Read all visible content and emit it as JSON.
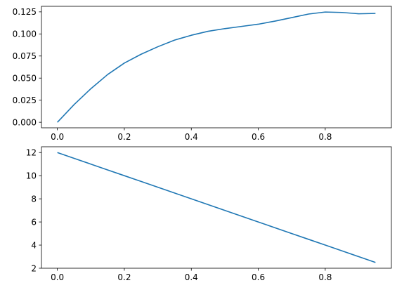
{
  "chart_data": [
    {
      "type": "line",
      "title": "",
      "xlabel": "",
      "ylabel": "",
      "xlim": [
        -0.0475,
        0.9975
      ],
      "ylim": [
        -0.00625,
        0.13125
      ],
      "grid": false,
      "x_ticks": [
        0.0,
        0.2,
        0.4,
        0.6,
        0.8
      ],
      "x_tick_labels": [
        "0.0",
        "0.2",
        "0.4",
        "0.6",
        "0.8"
      ],
      "y_ticks": [
        0.0,
        0.025,
        0.05,
        0.075,
        0.1,
        0.125
      ],
      "y_tick_labels": [
        "0.000",
        "0.025",
        "0.050",
        "0.075",
        "0.100",
        "0.125"
      ],
      "series": [
        {
          "color": "#1f77b4",
          "x": [
            0.0,
            0.05,
            0.1,
            0.15,
            0.2,
            0.25,
            0.3,
            0.35,
            0.4,
            0.45,
            0.5,
            0.55,
            0.6,
            0.65,
            0.7,
            0.75,
            0.8,
            0.85,
            0.9,
            0.95
          ],
          "y": [
            0.0,
            0.02,
            0.038,
            0.054,
            0.067,
            0.077,
            0.0855,
            0.093,
            0.0985,
            0.103,
            0.106,
            0.1085,
            0.111,
            0.1145,
            0.1185,
            0.1225,
            0.1248,
            0.1243,
            0.1228,
            0.1232
          ]
        }
      ]
    },
    {
      "type": "line",
      "title": "",
      "xlabel": "",
      "ylabel": "",
      "xlim": [
        -0.0475,
        0.9975
      ],
      "ylim": [
        2.0,
        12.5
      ],
      "grid": false,
      "x_ticks": [
        0.0,
        0.2,
        0.4,
        0.6,
        0.8
      ],
      "x_tick_labels": [
        "0.0",
        "0.2",
        "0.4",
        "0.6",
        "0.8"
      ],
      "y_ticks": [
        2,
        4,
        6,
        8,
        10,
        12
      ],
      "y_tick_labels": [
        "2",
        "4",
        "6",
        "8",
        "10",
        "12"
      ],
      "series": [
        {
          "color": "#1f77b4",
          "x": [
            0.0,
            0.05,
            0.1,
            0.15,
            0.2,
            0.25,
            0.3,
            0.35,
            0.4,
            0.45,
            0.5,
            0.55,
            0.6,
            0.65,
            0.7,
            0.75,
            0.8,
            0.85,
            0.9,
            0.95
          ],
          "y": [
            12.0,
            11.5,
            11.0,
            10.5,
            10.0,
            9.5,
            9.0,
            8.5,
            8.0,
            7.5,
            7.0,
            6.5,
            6.0,
            5.5,
            5.0,
            4.5,
            4.0,
            3.5,
            3.0,
            2.5
          ]
        }
      ]
    }
  ]
}
